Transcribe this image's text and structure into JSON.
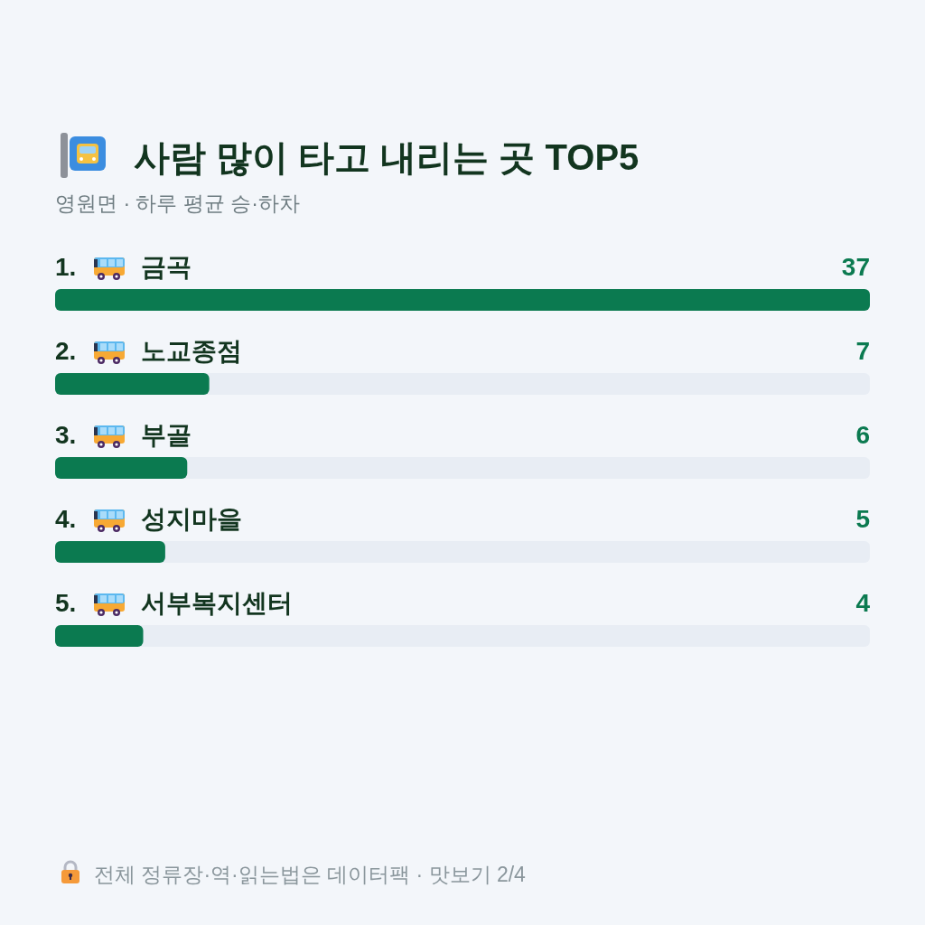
{
  "chart_data": {
    "type": "bar",
    "orientation": "horizontal",
    "title": "사람 많이 타고 내리는 곳 TOP5",
    "subtitle": "영원면 · 하루 평균 승·하차",
    "categories": [
      "1. 금곡",
      "2. 노교종점",
      "3. 부골",
      "4. 성지마을",
      "5. 서부복지센터"
    ],
    "values": [
      37,
      7,
      6,
      5,
      4
    ],
    "color": "#0b7a50",
    "data_labels": true,
    "annotations": [
      "전체 정류장·역·읽는법은 데이터팩 · 맛보기 2/4"
    ]
  }
}
